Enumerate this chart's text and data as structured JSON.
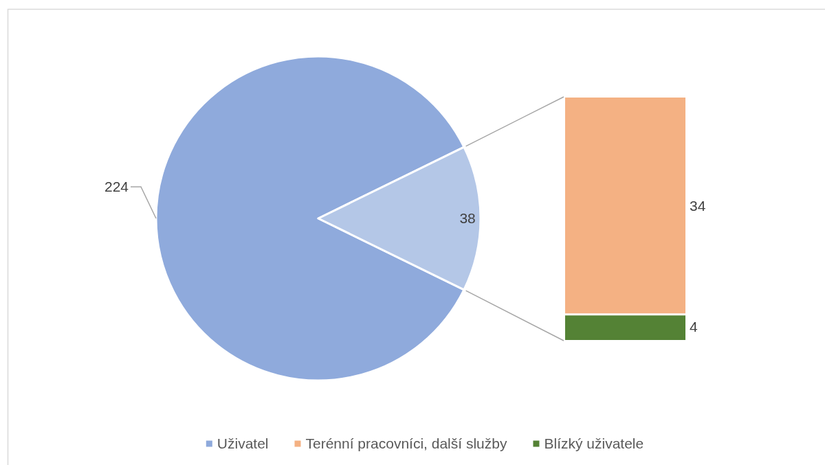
{
  "chart_data": [
    {
      "type": "pie",
      "categories": [
        "Uživatel",
        null
      ],
      "values": [
        224,
        38
      ],
      "colors": [
        "#8faadc",
        "#b4c7e7"
      ],
      "data_labels": true,
      "legend": "bottom"
    },
    {
      "type": "bar",
      "stacked": true,
      "categories": [
        null
      ],
      "series": [
        {
          "name": "Blízký uživatele",
          "color": "#548235",
          "values": [
            4
          ]
        },
        {
          "name": "Terénní pracovníci, další služby",
          "color": "#f4b183",
          "values": [
            34
          ]
        }
      ],
      "data_labels": true,
      "legend": "bottom"
    }
  ]
}
